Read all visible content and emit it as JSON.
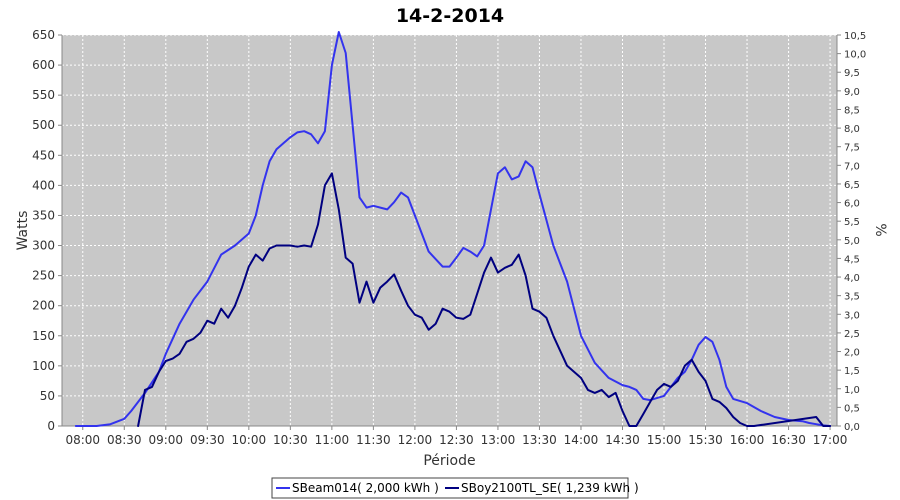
{
  "chart_data": {
    "type": "line",
    "title": "14-2-2014",
    "xlabel": "Période",
    "ylabel": "Watts",
    "y2label": "%",
    "xlim": [
      "07:45",
      "17:05"
    ],
    "ylim": [
      0,
      650
    ],
    "y2lim": [
      0.0,
      10.5
    ],
    "x_ticks": [
      "08:00",
      "08:30",
      "09:00",
      "09:30",
      "10:00",
      "10:30",
      "11:00",
      "11:30",
      "12:00",
      "12:30",
      "13:00",
      "13:30",
      "14:00",
      "14:30",
      "15:00",
      "15:30",
      "16:00",
      "16:30",
      "17:00"
    ],
    "y_ticks": [
      0,
      50,
      100,
      150,
      200,
      250,
      300,
      350,
      400,
      450,
      500,
      550,
      600,
      650
    ],
    "y2_ticks": [
      "0,0",
      "0,5",
      "1,0",
      "1,5",
      "2,0",
      "2,5",
      "3,0",
      "3,5",
      "4,0",
      "4,5",
      "5,0",
      "5,5",
      "6,0",
      "6,5",
      "7,0",
      "7,5",
      "8,0",
      "8,5",
      "9,0",
      "9,5",
      "10,0",
      "10,5"
    ],
    "grid": true,
    "legend_position": "bottom",
    "background": "#c8c8c8",
    "series": [
      {
        "name": "SBeam014( 2,000 kWh )",
        "color": "#3333ee",
        "x": [
          "07:55",
          "08:10",
          "08:20",
          "08:30",
          "08:35",
          "08:45",
          "08:55",
          "09:00",
          "09:10",
          "09:20",
          "09:30",
          "09:40",
          "09:50",
          "10:00",
          "10:05",
          "10:10",
          "10:15",
          "10:20",
          "10:25",
          "10:30",
          "10:35",
          "10:40",
          "10:45",
          "10:50",
          "10:55",
          "11:00",
          "11:05",
          "11:10",
          "11:15",
          "11:20",
          "11:25",
          "11:30",
          "11:40",
          "11:45",
          "11:50",
          "11:55",
          "12:00",
          "12:10",
          "12:20",
          "12:25",
          "12:30",
          "12:35",
          "12:40",
          "12:45",
          "12:50",
          "12:55",
          "13:00",
          "13:05",
          "13:10",
          "13:15",
          "13:20",
          "13:25",
          "13:30",
          "13:40",
          "13:50",
          "14:00",
          "14:10",
          "14:20",
          "14:30",
          "14:35",
          "14:40",
          "14:45",
          "14:50",
          "15:00",
          "15:10",
          "15:15",
          "15:20",
          "15:25",
          "15:30",
          "15:35",
          "15:40",
          "15:45",
          "15:50",
          "16:00",
          "16:10",
          "16:20",
          "16:30",
          "16:40",
          "16:45",
          "16:50",
          "16:55",
          "17:00"
        ],
        "values": [
          0,
          0,
          3,
          12,
          25,
          55,
          90,
          120,
          170,
          210,
          240,
          285,
          300,
          320,
          350,
          400,
          440,
          460,
          470,
          480,
          488,
          490,
          485,
          470,
          490,
          600,
          655,
          620,
          500,
          380,
          363,
          366,
          360,
          372,
          388,
          380,
          350,
          290,
          265,
          265,
          280,
          296,
          290,
          282,
          300,
          360,
          420,
          430,
          410,
          415,
          440,
          430,
          385,
          300,
          240,
          150,
          105,
          80,
          68,
          65,
          60,
          45,
          43,
          50,
          80,
          90,
          110,
          135,
          148,
          140,
          110,
          65,
          45,
          38,
          25,
          15,
          10,
          8,
          5,
          3,
          1,
          0
        ]
      },
      {
        "name": "SBoy2100TL_SE( 1,239 kWh )",
        "color": "#000080",
        "x": [
          "08:40",
          "08:45",
          "08:50",
          "08:55",
          "09:00",
          "09:05",
          "09:10",
          "09:15",
          "09:20",
          "09:25",
          "09:30",
          "09:35",
          "09:40",
          "09:45",
          "09:50",
          "09:55",
          "10:00",
          "10:05",
          "10:10",
          "10:15",
          "10:20",
          "10:25",
          "10:30",
          "10:35",
          "10:40",
          "10:45",
          "10:50",
          "10:55",
          "11:00",
          "11:05",
          "11:10",
          "11:15",
          "11:20",
          "11:25",
          "11:30",
          "11:35",
          "11:40",
          "11:45",
          "11:50",
          "11:55",
          "12:00",
          "12:05",
          "12:10",
          "12:15",
          "12:20",
          "12:25",
          "12:30",
          "12:35",
          "12:40",
          "12:45",
          "12:50",
          "12:55",
          "13:00",
          "13:05",
          "13:10",
          "13:15",
          "13:20",
          "13:25",
          "13:30",
          "13:35",
          "13:40",
          "13:45",
          "13:50",
          "13:55",
          "14:00",
          "14:05",
          "14:10",
          "14:15",
          "14:20",
          "14:25",
          "14:30",
          "14:35",
          "14:40",
          "14:45",
          "14:50",
          "14:55",
          "15:00",
          "15:05",
          "15:10",
          "15:15",
          "15:20",
          "15:25",
          "15:30",
          "15:35",
          "15:40",
          "15:45",
          "15:50",
          "15:55",
          "16:00",
          "16:05",
          "16:50",
          "16:55",
          "17:00"
        ],
        "values": [
          0,
          60,
          65,
          90,
          108,
          112,
          120,
          140,
          145,
          155,
          175,
          170,
          195,
          180,
          200,
          230,
          265,
          285,
          275,
          295,
          300,
          300,
          300,
          298,
          300,
          298,
          335,
          400,
          420,
          360,
          280,
          270,
          205,
          240,
          205,
          230,
          240,
          252,
          225,
          200,
          185,
          180,
          160,
          170,
          195,
          190,
          180,
          178,
          185,
          220,
          255,
          280,
          255,
          263,
          268,
          285,
          250,
          195,
          190,
          180,
          150,
          125,
          100,
          90,
          80,
          60,
          55,
          60,
          48,
          55,
          25,
          0,
          0,
          20,
          40,
          60,
          70,
          65,
          75,
          100,
          110,
          90,
          75,
          45,
          40,
          30,
          15,
          5,
          0,
          0,
          15,
          0,
          0
        ]
      }
    ]
  }
}
